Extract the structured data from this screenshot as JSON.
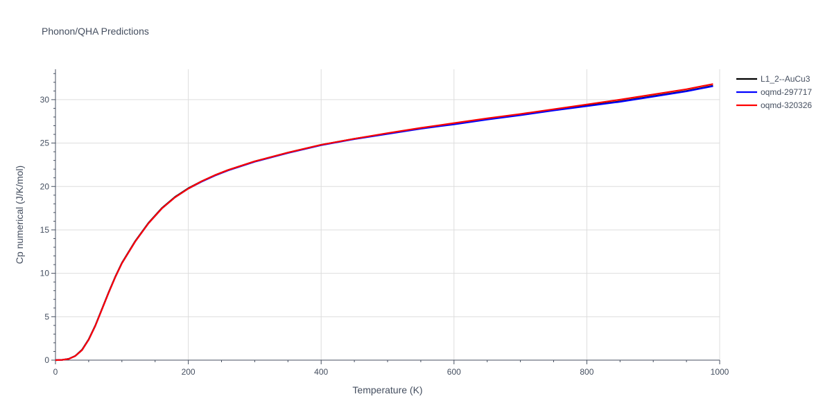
{
  "chart_data": {
    "type": "line",
    "title": "Phonon/QHA Predictions",
    "xlabel": "Temperature (K)",
    "ylabel": "Cp numerical (J/K/mol)",
    "xlim": [
      0,
      1000
    ],
    "ylim": [
      0,
      33.5
    ],
    "x_ticks": [
      0,
      200,
      400,
      600,
      800,
      1000
    ],
    "y_ticks": [
      0,
      5,
      10,
      15,
      20,
      25,
      30
    ],
    "grid": true,
    "legend_position": "top-right",
    "series": [
      {
        "name": "L1_2--AuCu3",
        "color": "#000000",
        "x": [
          0,
          10,
          20,
          30,
          40,
          50,
          60,
          70,
          80,
          90,
          100,
          120,
          140,
          160,
          180,
          200,
          220,
          240,
          260,
          280,
          300,
          350,
          400,
          450,
          500,
          550,
          600,
          650,
          700,
          750,
          800,
          850,
          900,
          950,
          990
        ],
        "y": [
          0,
          0.03,
          0.15,
          0.5,
          1.2,
          2.4,
          4.0,
          5.9,
          7.8,
          9.6,
          11.2,
          13.7,
          15.8,
          17.5,
          18.8,
          19.8,
          20.6,
          21.3,
          21.9,
          22.4,
          22.9,
          23.9,
          24.8,
          25.5,
          26.1,
          26.7,
          27.2,
          27.75,
          28.25,
          28.8,
          29.3,
          29.8,
          30.4,
          31.0,
          31.6
        ]
      },
      {
        "name": "oqmd-297717",
        "color": "#0000ff",
        "x": [
          0,
          10,
          20,
          30,
          40,
          50,
          60,
          70,
          80,
          90,
          100,
          120,
          140,
          160,
          180,
          200,
          220,
          240,
          260,
          280,
          300,
          350,
          400,
          450,
          500,
          550,
          600,
          650,
          700,
          750,
          800,
          850,
          900,
          950,
          990
        ],
        "y": [
          0,
          0.03,
          0.14,
          0.48,
          1.15,
          2.35,
          3.95,
          5.85,
          7.75,
          9.55,
          11.15,
          13.65,
          15.75,
          17.45,
          18.75,
          19.75,
          20.55,
          21.25,
          21.85,
          22.35,
          22.85,
          23.85,
          24.75,
          25.45,
          26.05,
          26.65,
          27.15,
          27.7,
          28.2,
          28.75,
          29.25,
          29.75,
          30.35,
          30.95,
          31.55
        ]
      },
      {
        "name": "oqmd-320326",
        "color": "#ff0000",
        "x": [
          0,
          10,
          20,
          30,
          40,
          50,
          60,
          70,
          80,
          90,
          100,
          120,
          140,
          160,
          180,
          200,
          220,
          240,
          260,
          280,
          300,
          350,
          400,
          450,
          500,
          550,
          600,
          650,
          700,
          750,
          800,
          850,
          900,
          950,
          990
        ],
        "y": [
          0,
          0.03,
          0.14,
          0.48,
          1.15,
          2.35,
          3.95,
          5.85,
          7.75,
          9.55,
          11.15,
          13.65,
          15.75,
          17.45,
          18.75,
          19.75,
          20.6,
          21.3,
          21.9,
          22.4,
          22.9,
          23.9,
          24.8,
          25.5,
          26.15,
          26.75,
          27.3,
          27.85,
          28.35,
          28.9,
          29.45,
          30.0,
          30.6,
          31.2,
          31.8
        ]
      }
    ]
  }
}
